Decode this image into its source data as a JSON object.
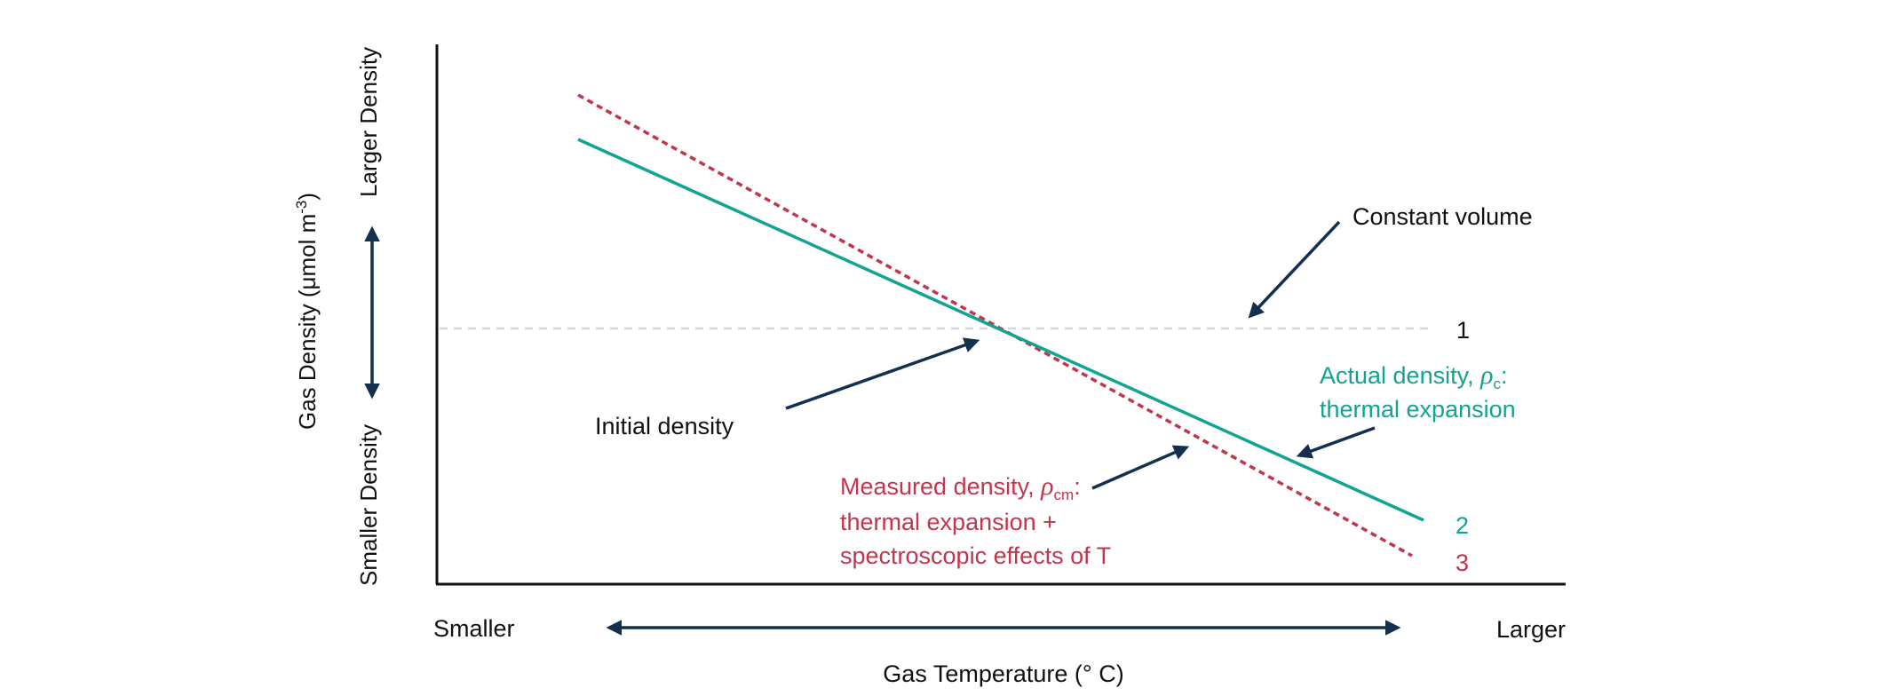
{
  "colors": {
    "navy": "#14304f",
    "teal": "#12a391",
    "red": "#c2354d",
    "guide": "#d4d8dd",
    "text": "#111111"
  },
  "axes": {
    "x_label": "Gas Temperature (° C)",
    "x_min_label": "Smaller",
    "x_max_label": "Larger",
    "y_label_main": "Gas Density (μmol m",
    "y_label_sup": "-3",
    "y_label_close": ")",
    "y_min_label": "Smaller Density",
    "y_max_label": "Larger Density"
  },
  "lines": {
    "constant": {
      "end_label": "1"
    },
    "actual": {
      "end_label": "2"
    },
    "measured": {
      "end_label": "3"
    }
  },
  "annotations": {
    "constant_volume": "Constant volume",
    "initial_density": "Initial density",
    "actual_1_pre": "Actual density, ",
    "actual_symbol": "ρ",
    "actual_sub": "c",
    "actual_1_post": ":",
    "actual_2": "thermal expansion",
    "measured_1_pre": "Measured density, ",
    "measured_symbol": "ρ",
    "measured_sub": "cm",
    "measured_1_post": ":",
    "measured_2": "thermal expansion +",
    "measured_3": "spectroscopic effects of T"
  }
}
